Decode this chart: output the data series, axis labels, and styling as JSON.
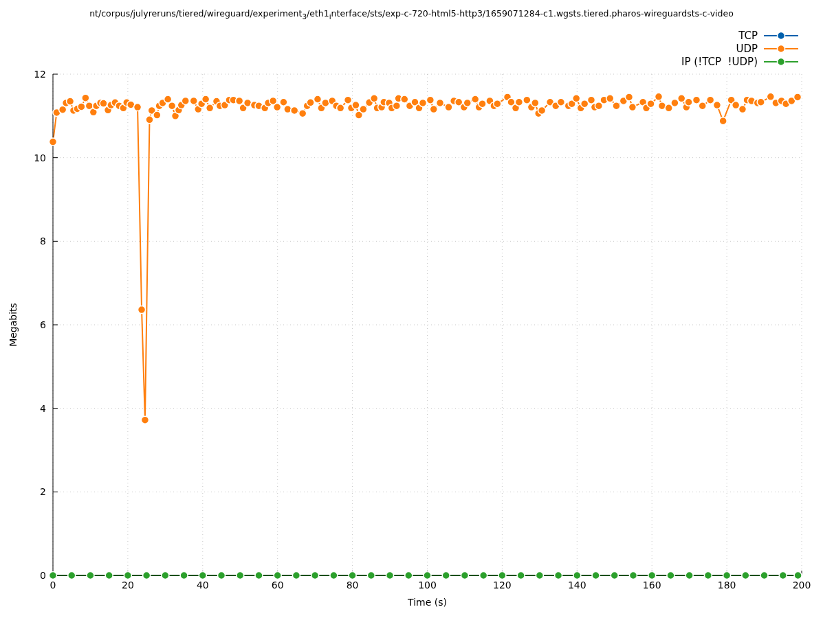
{
  "chart_data": {
    "type": "line",
    "title": "nt/corpus/julyreruns/tiered/wireguard/experiment$_{3}$/eth1$_{i}$nterface/sts/exp-c-720-html5-http3/1659071284-c1.wgsts.tiered.pharos-wireguardsts-c-video",
    "xlabel": "Time (s)",
    "ylabel": "Megabits",
    "xlim": [
      0,
      200
    ],
    "xticks": [
      0,
      20,
      40,
      60,
      80,
      100,
      120,
      140,
      160,
      180,
      200
    ],
    "ylim": [
      0,
      12
    ],
    "yticks": [
      0,
      2,
      4,
      6,
      8,
      10,
      12
    ],
    "grid": true,
    "legend": "top right",
    "marker": "circle",
    "line_style": "solid",
    "series": [
      {
        "name": "TCP",
        "color": "#0060ad"
      },
      {
        "name": "UDP",
        "color": "#ff7f0e",
        "x": [
          0,
          1,
          2.6,
          3.5,
          4.6,
          5.5,
          6.5,
          7.6,
          8.7,
          9.7,
          10.8,
          11.6,
          12.7,
          13.5,
          14.7,
          15.5,
          16.6,
          17.7,
          18.8,
          19.7,
          20.8,
          22.6,
          23.7,
          24.6,
          25.8,
          26.4,
          27.8,
          28.4,
          29.3,
          30.7,
          31.8,
          32.7,
          33.6,
          34.3,
          35.4,
          37.6,
          38.8,
          39.7,
          40.8,
          41.9,
          43.7,
          44.6,
          45.9,
          47.1,
          48.2,
          49.8,
          50.8,
          52,
          53.8,
          55,
          56.6,
          57.5,
          58.8,
          59.9,
          61.6,
          62.7,
          64.5,
          66.7,
          67.9,
          68.8,
          70.7,
          71.7,
          72.8,
          74.6,
          75.7,
          76.8,
          78.8,
          79.7,
          80.9,
          81.7,
          82.9,
          84.5,
          85.8,
          86.6,
          87.8,
          88.4,
          89.8,
          90.5,
          91.8,
          92.3,
          93.9,
          95.3,
          96.7,
          97.8,
          98.8,
          100.8,
          101.7,
          103.4,
          105.7,
          107.1,
          108.4,
          109.8,
          110.7,
          112.8,
          113.8,
          114.7,
          116.7,
          117.8,
          118.7,
          121.4,
          122.4,
          123.6,
          124.5,
          126.6,
          127.8,
          128.8,
          129.7,
          130.6,
          132.8,
          134.3,
          135.7,
          137.7,
          138.6,
          139.8,
          141,
          142,
          143.8,
          144.7,
          145.8,
          147.2,
          148.8,
          150.5,
          152.4,
          153.9,
          154.8,
          157.6,
          158.5,
          159.7,
          161.8,
          162.7,
          164.5,
          166.1,
          167.9,
          169.2,
          169.8,
          171.9,
          173.5,
          175.6,
          177.4,
          179,
          181.2,
          182.4,
          184.2,
          185.4,
          186.6,
          188.2,
          189.1,
          191.7,
          193.1,
          194.6,
          195.8,
          197.3,
          198.9
        ],
        "values": [
          10.38,
          11.08,
          11.15,
          11.31,
          11.35,
          11.13,
          11.17,
          11.22,
          11.43,
          11.24,
          11.09,
          11.24,
          11.31,
          11.3,
          11.14,
          11.26,
          11.32,
          11.24,
          11.19,
          11.32,
          11.27,
          11.21,
          6.36,
          3.72,
          10.91,
          11.13,
          11.02,
          11.24,
          11.31,
          11.4,
          11.24,
          11.0,
          11.14,
          11.26,
          11.36,
          11.36,
          11.16,
          11.29,
          11.4,
          11.19,
          11.35,
          11.24,
          11.26,
          11.38,
          11.38,
          11.36,
          11.19,
          11.31,
          11.26,
          11.24,
          11.19,
          11.31,
          11.36,
          11.21,
          11.33,
          11.16,
          11.13,
          11.06,
          11.24,
          11.32,
          11.4,
          11.19,
          11.31,
          11.36,
          11.24,
          11.19,
          11.38,
          11.19,
          11.26,
          11.02,
          11.16,
          11.32,
          11.42,
          11.19,
          11.21,
          11.33,
          11.31,
          11.19,
          11.24,
          11.42,
          11.4,
          11.24,
          11.33,
          11.19,
          11.31,
          11.38,
          11.16,
          11.31,
          11.21,
          11.36,
          11.33,
          11.21,
          11.31,
          11.4,
          11.21,
          11.29,
          11.36,
          11.24,
          11.29,
          11.45,
          11.33,
          11.19,
          11.33,
          11.38,
          11.21,
          11.31,
          11.06,
          11.13,
          11.33,
          11.24,
          11.33,
          11.24,
          11.29,
          11.42,
          11.19,
          11.29,
          11.38,
          11.21,
          11.24,
          11.38,
          11.42,
          11.24,
          11.36,
          11.45,
          11.21,
          11.33,
          11.19,
          11.29,
          11.46,
          11.24,
          11.19,
          11.31,
          11.42,
          11.21,
          11.33,
          11.38,
          11.24,
          11.38,
          11.26,
          10.88,
          11.38,
          11.26,
          11.16,
          11.38,
          11.36,
          11.31,
          11.33,
          11.46,
          11.31,
          11.36,
          11.29,
          11.36,
          11.45
        ]
      },
      {
        "name": "IP (!TCP  !UDP)",
        "color": "#2ca02c",
        "x": [
          0,
          5,
          10,
          15,
          20,
          25,
          30,
          35,
          40,
          45,
          50,
          55,
          60,
          65,
          70,
          75,
          80,
          85,
          90,
          95,
          100,
          105,
          110,
          115,
          120,
          125,
          130,
          135,
          140,
          145,
          150,
          155,
          160,
          165,
          170,
          175,
          180,
          185,
          190,
          195,
          199
        ],
        "values": [
          0,
          0,
          0,
          0,
          0,
          0,
          0,
          0,
          0,
          0,
          0,
          0,
          0,
          0,
          0,
          0,
          0,
          0,
          0,
          0,
          0,
          0,
          0,
          0,
          0,
          0,
          0,
          0,
          0,
          0,
          0,
          0,
          0,
          0,
          0,
          0,
          0,
          0,
          0,
          0,
          0
        ]
      }
    ]
  }
}
